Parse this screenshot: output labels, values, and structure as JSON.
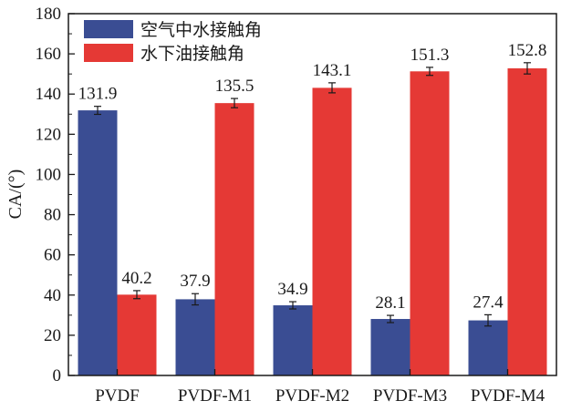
{
  "chart_data": {
    "type": "bar",
    "categories": [
      "PVDF",
      "PVDF-M1",
      "PVDF-M2",
      "PVDF-M3",
      "PVDF-M4"
    ],
    "series": [
      {
        "name": "空气中水接触角",
        "color": "#3a4d93",
        "values": [
          131.9,
          37.9,
          34.9,
          28.1,
          27.4
        ],
        "errors": [
          2.0,
          2.8,
          1.8,
          1.8,
          2.8
        ],
        "value_labels": [
          "131.9",
          "37.9",
          "34.9",
          "28.1",
          "27.4"
        ]
      },
      {
        "name": "水下油接触角",
        "color": "#e53935",
        "values": [
          40.2,
          135.5,
          143.1,
          151.3,
          152.8
        ],
        "errors": [
          2.0,
          2.3,
          2.5,
          2.0,
          2.8
        ],
        "value_labels": [
          "40.2",
          "135.5",
          "143.1",
          "151.3",
          "152.8"
        ]
      }
    ],
    "ylabel": "CA/(°)",
    "xlabel": "",
    "ylim": [
      0,
      180
    ],
    "yticks": [
      0,
      20,
      40,
      60,
      80,
      100,
      120,
      140,
      160,
      180
    ],
    "ytick_labels": [
      "0",
      "20",
      "40",
      "60",
      "80",
      "100",
      "120",
      "140",
      "160",
      "180"
    ],
    "grid": false,
    "legend_position": "top-left"
  }
}
